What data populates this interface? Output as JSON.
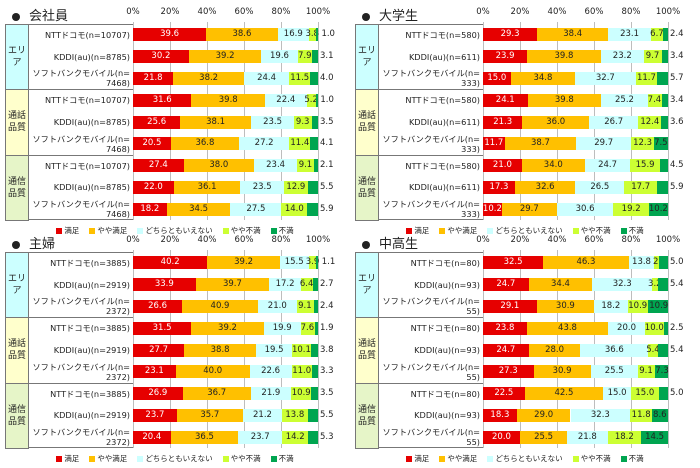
{
  "colors": [
    "#e60000",
    "#ffc000",
    "#ccffff",
    "#ccff33",
    "#00a550"
  ],
  "label_colors": [
    "#ffffff",
    "#222222",
    "#222222",
    "#222222",
    "#222222"
  ],
  "category_colors": [
    "#ccffff",
    "#ffffcc",
    "#e6f5c8"
  ],
  "chart_data": {
    "type": "bar",
    "stacked": true,
    "orientation": "horizontal",
    "axis_ticks": [
      "0%",
      "20%",
      "40%",
      "60%",
      "80%",
      "100%"
    ],
    "xlim": [
      0,
      100
    ],
    "legend": [
      "満足",
      "やや満足",
      "どちらともいえない",
      "やや不満",
      "不満"
    ],
    "legend_position": "bottom",
    "panels": [
      {
        "title": "会社員",
        "groups": [
          {
            "label": "エリア",
            "rows": [
              {
                "name": "NTTドコモ(n=10707)",
                "values": [
                  39.6,
                  38.6,
                  16.9,
                  3.8,
                  1.0
                ]
              },
              {
                "name": "KDDI(au)(n=8785)",
                "values": [
                  30.2,
                  39.2,
                  19.6,
                  7.9,
                  3.1
                ]
              },
              {
                "name": "ソフトバンクモバイル(n=7468)",
                "values": [
                  21.8,
                  38.2,
                  24.4,
                  11.5,
                  4.0
                ]
              }
            ]
          },
          {
            "label": "通話品質",
            "rows": [
              {
                "name": "NTTドコモ(n=10707)",
                "values": [
                  31.6,
                  39.8,
                  22.4,
                  5.2,
                  1.0
                ]
              },
              {
                "name": "KDDI(au)(n=8785)",
                "values": [
                  25.6,
                  38.1,
                  23.5,
                  9.3,
                  3.5
                ]
              },
              {
                "name": "ソフトバンクモバイル(n=7468)",
                "values": [
                  20.5,
                  36.8,
                  27.2,
                  11.4,
                  4.1
                ]
              }
            ]
          },
          {
            "label": "通信品質",
            "rows": [
              {
                "name": "NTTドコモ(n=10707)",
                "values": [
                  27.4,
                  38.0,
                  23.4,
                  9.1,
                  2.1
                ]
              },
              {
                "name": "KDDI(au)(n=8785)",
                "values": [
                  22.0,
                  36.1,
                  23.5,
                  12.9,
                  5.5
                ]
              },
              {
                "name": "ソフトバンクモバイル(n=7468)",
                "values": [
                  18.2,
                  34.5,
                  27.5,
                  14.0,
                  5.9
                ]
              }
            ]
          }
        ]
      },
      {
        "title": "大学生",
        "groups": [
          {
            "label": "エリア",
            "rows": [
              {
                "name": "NTTドコモ(n=580)",
                "values": [
                  29.3,
                  38.4,
                  23.1,
                  6.7,
                  2.4
                ]
              },
              {
                "name": "KDDI(au)(n=611)",
                "values": [
                  23.9,
                  39.8,
                  23.2,
                  9.7,
                  3.4
                ]
              },
              {
                "name": "ソフトバンクモバイル(n=333)",
                "values": [
                  15.0,
                  34.8,
                  32.7,
                  11.7,
                  5.7
                ]
              }
            ]
          },
          {
            "label": "通話品質",
            "rows": [
              {
                "name": "NTTドコモ(n=580)",
                "values": [
                  24.1,
                  39.8,
                  25.2,
                  7.4,
                  3.4
                ]
              },
              {
                "name": "KDDI(au)(n=611)",
                "values": [
                  21.3,
                  36.0,
                  26.7,
                  12.4,
                  3.6
                ]
              },
              {
                "name": "ソフトバンクモバイル(n=333)",
                "values": [
                  11.7,
                  38.7,
                  29.7,
                  12.3,
                  7.5
                ]
              }
            ]
          },
          {
            "label": "通信品質",
            "rows": [
              {
                "name": "NTTドコモ(n=580)",
                "values": [
                  21.0,
                  34.0,
                  24.7,
                  15.9,
                  4.5
                ]
              },
              {
                "name": "KDDI(au)(n=611)",
                "values": [
                  17.3,
                  32.6,
                  26.5,
                  17.7,
                  5.9
                ]
              },
              {
                "name": "ソフトバンクモバイル(n=333)",
                "values": [
                  10.2,
                  29.7,
                  30.6,
                  19.2,
                  10.2
                ]
              }
            ]
          }
        ]
      },
      {
        "title": "主婦",
        "groups": [
          {
            "label": "エリア",
            "rows": [
              {
                "name": "NTTドコモ(n=3885)",
                "values": [
                  40.2,
                  39.2,
                  15.5,
                  3.9,
                  1.1
                ]
              },
              {
                "name": "KDDI(au)(n=2919)",
                "values": [
                  33.9,
                  39.7,
                  17.2,
                  6.4,
                  2.7
                ]
              },
              {
                "name": "ソフトバンクモバイル(n=2372)",
                "values": [
                  26.6,
                  40.9,
                  21.0,
                  9.1,
                  2.4
                ]
              }
            ]
          },
          {
            "label": "通話品質",
            "rows": [
              {
                "name": "NTTドコモ(n=3885)",
                "values": [
                  31.5,
                  39.2,
                  19.9,
                  7.6,
                  1.9
                ]
              },
              {
                "name": "KDDI(au)(n=2919)",
                "values": [
                  27.7,
                  38.8,
                  19.5,
                  10.1,
                  3.8
                ]
              },
              {
                "name": "ソフトバンクモバイル(n=2372)",
                "values": [
                  23.1,
                  40.0,
                  22.6,
                  11.0,
                  3.3
                ]
              }
            ]
          },
          {
            "label": "通信品質",
            "rows": [
              {
                "name": "NTTドコモ(n=3885)",
                "values": [
                  26.9,
                  36.7,
                  21.9,
                  10.9,
                  3.5
                ]
              },
              {
                "name": "KDDI(au)(n=2919)",
                "values": [
                  23.7,
                  35.7,
                  21.2,
                  13.8,
                  5.5
                ]
              },
              {
                "name": "ソフトバンクモバイル(n=2372)",
                "values": [
                  20.4,
                  36.5,
                  23.7,
                  14.2,
                  5.3
                ]
              }
            ]
          }
        ]
      },
      {
        "title": "中高生",
        "groups": [
          {
            "label": "エリア",
            "rows": [
              {
                "name": "NTTドコモ(n=80)",
                "values": [
                  32.5,
                  46.3,
                  13.8,
                  2.5,
                  5.0
                ]
              },
              {
                "name": "KDDI(au)(n=93)",
                "values": [
                  24.7,
                  34.4,
                  32.3,
                  3.2,
                  5.4
                ]
              },
              {
                "name": "ソフトバンクモバイル(n=55)",
                "values": [
                  29.1,
                  30.9,
                  18.2,
                  10.9,
                  10.9
                ]
              }
            ]
          },
          {
            "label": "通話品質",
            "rows": [
              {
                "name": "NTTドコモ(n=80)",
                "values": [
                  23.8,
                  43.8,
                  20.0,
                  10.0,
                  2.5
                ]
              },
              {
                "name": "KDDI(au)(n=93)",
                "values": [
                  24.7,
                  28.0,
                  36.6,
                  5.4,
                  5.4
                ]
              },
              {
                "name": "ソフトバンクモバイル(n=55)",
                "values": [
                  27.3,
                  30.9,
                  25.5,
                  9.1,
                  7.3
                ]
              }
            ]
          },
          {
            "label": "通信品質",
            "rows": [
              {
                "name": "NTTドコモ(n=80)",
                "values": [
                  22.5,
                  42.5,
                  15.0,
                  15.0,
                  5.0
                ]
              },
              {
                "name": "KDDI(au)(n=93)",
                "values": [
                  18.3,
                  29.0,
                  32.3,
                  11.8,
                  8.6
                ]
              },
              {
                "name": "ソフトバンクモバイル(n=55)",
                "values": [
                  20.0,
                  25.5,
                  21.8,
                  18.2,
                  14.5
                ]
              }
            ]
          }
        ]
      }
    ]
  }
}
